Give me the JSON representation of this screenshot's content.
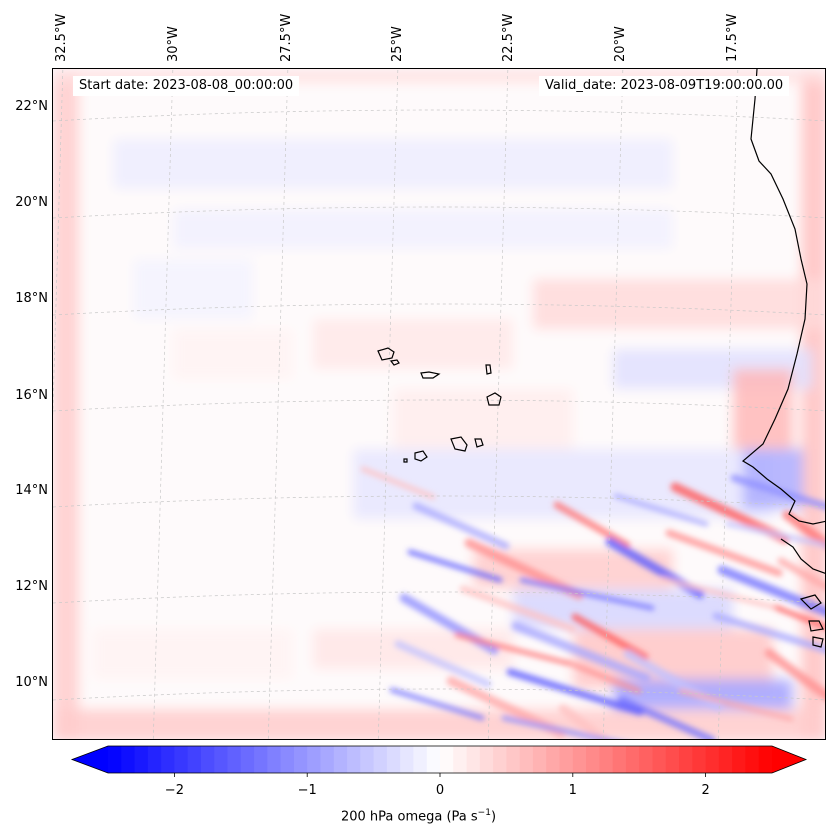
{
  "header": {
    "start_date": "Start date: 2023-08-08_00:00:00",
    "valid_date": "Valid_date: 2023-08-09T19:00:00.00"
  },
  "axes": {
    "longitude_labels": [
      {
        "text": "32.5°W",
        "value": -32.5
      },
      {
        "text": "30°W",
        "value": -30
      },
      {
        "text": "27.5°W",
        "value": -27.5
      },
      {
        "text": "25°W",
        "value": -25
      },
      {
        "text": "22.5°W",
        "value": -22.5
      },
      {
        "text": "20°W",
        "value": -20
      },
      {
        "text": "17.5°W",
        "value": -17.5
      }
    ],
    "latitude_labels": [
      {
        "text": "22°N",
        "value": 22
      },
      {
        "text": "20°N",
        "value": 20
      },
      {
        "text": "18°N",
        "value": 18
      },
      {
        "text": "16°N",
        "value": 16
      },
      {
        "text": "14°N",
        "value": 14
      },
      {
        "text": "12°N",
        "value": 12
      },
      {
        "text": "10°N",
        "value": 10
      }
    ]
  },
  "colorbar": {
    "label_main": "200 hPa omega (Pa s",
    "label_exp": "−1",
    "label_end": ")",
    "ticks": [
      {
        "text": "−2",
        "value": -2
      },
      {
        "text": "−1",
        "value": -1
      },
      {
        "text": "0",
        "value": 0
      },
      {
        "text": "1",
        "value": 1
      },
      {
        "text": "2",
        "value": 2
      }
    ],
    "range": [
      -2.5,
      2.5
    ],
    "colormap": "bwr",
    "neg_color": "#0000ff",
    "zero_color": "#ffffff",
    "pos_color": "#ff0000",
    "extend": "both"
  },
  "map": {
    "projection": "lambert-like",
    "gridlines": true,
    "field": "200 hPa omega",
    "coastline_color": "#000000",
    "gridline_color": "#c8c8c8"
  }
}
